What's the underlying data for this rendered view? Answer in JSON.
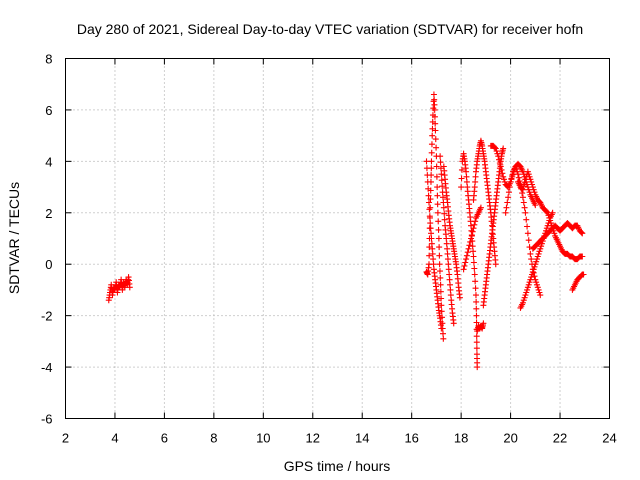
{
  "chart_data": {
    "type": "scatter",
    "title": "Day 280 of 2021, Sidereal Day-to-day VTEC variation (SDTVAR) for receiver hofn",
    "xlabel": "GPS time / hours",
    "ylabel": "SDTVAR / TECUs",
    "xlim": [
      2,
      24
    ],
    "ylim": [
      -6,
      8
    ],
    "xticks": [
      2,
      4,
      6,
      8,
      10,
      12,
      14,
      16,
      18,
      20,
      22,
      24
    ],
    "yticks": [
      -6,
      -4,
      -2,
      0,
      2,
      4,
      6,
      8
    ],
    "grid": true,
    "series": [
      {
        "name": "SDTVAR",
        "color": "#ff0000",
        "marker": "plus",
        "segments": [
          [
            [
              3.75,
              -1.4
            ],
            [
              3.8,
              -1.1
            ],
            [
              3.85,
              -0.8
            ],
            [
              3.9,
              -1.2
            ],
            [
              3.95,
              -0.9
            ],
            [
              4.0,
              -1.0
            ],
            [
              4.05,
              -0.7
            ],
            [
              4.1,
              -1.1
            ],
            [
              4.15,
              -0.8
            ],
            [
              4.2,
              -0.9
            ],
            [
              4.25,
              -0.6
            ],
            [
              4.3,
              -1.0
            ],
            [
              4.35,
              -0.7
            ],
            [
              4.4,
              -0.9
            ],
            [
              4.45,
              -0.6
            ],
            [
              4.5,
              -0.8
            ],
            [
              4.55,
              -0.5
            ],
            [
              4.6,
              -0.9
            ]
          ],
          [
            [
              16.6,
              -0.3
            ],
            [
              16.65,
              -0.4
            ],
            [
              16.7,
              0.0
            ],
            [
              16.72,
              1.0
            ],
            [
              16.75,
              2.2
            ],
            [
              16.78,
              3.2
            ],
            [
              16.8,
              4.0
            ],
            [
              16.83,
              5.0
            ],
            [
              16.86,
              5.8
            ],
            [
              16.9,
              6.6
            ],
            [
              16.93,
              6.0
            ],
            [
              16.96,
              5.2
            ],
            [
              17.0,
              4.2
            ],
            [
              17.03,
              3.0
            ],
            [
              17.06,
              2.0
            ],
            [
              17.1,
              1.0
            ],
            [
              17.13,
              0.0
            ],
            [
              17.17,
              -0.8
            ],
            [
              17.2,
              -1.6
            ],
            [
              17.24,
              -2.3
            ],
            [
              17.28,
              -2.9
            ]
          ],
          [
            [
              16.6,
              4.0
            ],
            [
              16.65,
              3.2
            ],
            [
              16.7,
              2.4
            ],
            [
              16.75,
              1.6
            ],
            [
              16.8,
              1.0
            ],
            [
              16.85,
              0.4
            ],
            [
              16.9,
              -0.2
            ],
            [
              16.95,
              -0.6
            ],
            [
              17.0,
              -1.0
            ],
            [
              17.05,
              -1.4
            ],
            [
              17.1,
              -1.8
            ],
            [
              17.15,
              -2.1
            ],
            [
              17.2,
              -2.5
            ]
          ],
          [
            [
              17.15,
              4.2
            ],
            [
              17.2,
              3.5
            ],
            [
              17.25,
              2.8
            ],
            [
              17.3,
              2.2
            ],
            [
              17.35,
              1.5
            ],
            [
              17.4,
              1.0
            ],
            [
              17.45,
              0.4
            ],
            [
              17.5,
              -0.2
            ],
            [
              17.55,
              -0.8
            ],
            [
              17.6,
              -1.4
            ],
            [
              17.65,
              -1.9
            ],
            [
              17.7,
              -2.3
            ]
          ],
          [
            [
              17.3,
              3.8
            ],
            [
              17.35,
              3.3
            ],
            [
              17.4,
              2.8
            ],
            [
              17.45,
              2.4
            ],
            [
              17.5,
              1.9
            ],
            [
              17.55,
              1.5
            ],
            [
              17.6,
              1.2
            ],
            [
              17.65,
              0.9
            ],
            [
              17.7,
              0.6
            ],
            [
              17.75,
              0.3
            ],
            [
              17.8,
              0.0
            ],
            [
              17.85,
              -0.4
            ],
            [
              17.9,
              -0.9
            ],
            [
              17.95,
              -1.3
            ]
          ],
          [
            [
              18.0,
              3.0
            ],
            [
              18.05,
              4.0
            ],
            [
              18.1,
              4.3
            ],
            [
              18.15,
              4.0
            ],
            [
              18.2,
              3.6
            ],
            [
              18.25,
              3.0
            ],
            [
              18.3,
              2.5
            ],
            [
              18.35,
              2.0
            ],
            [
              18.4,
              1.5
            ],
            [
              18.45,
              0.9
            ],
            [
              18.5,
              0.3
            ],
            [
              18.55,
              -0.4
            ],
            [
              18.6,
              -1.2
            ],
            [
              18.62,
              -2.0
            ],
            [
              18.63,
              -2.8
            ],
            [
              18.64,
              -3.5
            ],
            [
              18.65,
              -4.0
            ]
          ],
          [
            [
              18.65,
              -2.6
            ],
            [
              18.7,
              -2.4
            ],
            [
              18.75,
              -2.5
            ],
            [
              18.8,
              -2.4
            ],
            [
              18.85,
              -2.5
            ],
            [
              18.9,
              -2.3
            ]
          ],
          [
            [
              18.5,
              2.5
            ],
            [
              18.55,
              3.0
            ],
            [
              18.6,
              3.6
            ],
            [
              18.65,
              4.0
            ],
            [
              18.7,
              4.3
            ],
            [
              18.75,
              4.6
            ],
            [
              18.8,
              4.8
            ],
            [
              18.85,
              4.6
            ],
            [
              18.9,
              4.3
            ],
            [
              18.95,
              4.0
            ],
            [
              19.0,
              3.6
            ],
            [
              19.05,
              3.2
            ],
            [
              19.1,
              2.8
            ],
            [
              19.15,
              2.4
            ],
            [
              19.2,
              2.0
            ],
            [
              19.25,
              1.5
            ],
            [
              19.3,
              1.0
            ],
            [
              19.35,
              0.5
            ],
            [
              19.4,
              0.0
            ]
          ],
          [
            [
              18.1,
              -0.2
            ],
            [
              18.2,
              0.2
            ],
            [
              18.3,
              0.6
            ],
            [
              18.4,
              1.0
            ],
            [
              18.5,
              1.4
            ],
            [
              18.6,
              1.8
            ],
            [
              18.7,
              2.0
            ],
            [
              18.8,
              2.2
            ]
          ],
          [
            [
              18.9,
              -1.6
            ],
            [
              18.95,
              -1.2
            ],
            [
              19.0,
              -0.8
            ],
            [
              19.05,
              -0.4
            ],
            [
              19.1,
              0.0
            ],
            [
              19.15,
              0.4
            ],
            [
              19.2,
              0.8
            ],
            [
              19.25,
              1.2
            ],
            [
              19.3,
              1.6
            ],
            [
              19.35,
              2.0
            ],
            [
              19.4,
              2.4
            ],
            [
              19.45,
              2.8
            ],
            [
              19.5,
              3.2
            ],
            [
              19.55,
              3.6
            ],
            [
              19.6,
              4.0
            ],
            [
              19.65,
              4.3
            ],
            [
              19.7,
              4.5
            ]
          ],
          [
            [
              19.2,
              4.6
            ],
            [
              19.3,
              4.6
            ],
            [
              19.4,
              4.5
            ],
            [
              19.5,
              4.2
            ],
            [
              19.6,
              3.8
            ],
            [
              19.7,
              3.4
            ],
            [
              19.8,
              3.1
            ],
            [
              19.9,
              3.0
            ],
            [
              20.0,
              3.2
            ],
            [
              20.1,
              3.5
            ],
            [
              20.2,
              3.8
            ],
            [
              20.3,
              3.9
            ],
            [
              20.4,
              3.8
            ],
            [
              20.5,
              3.6
            ],
            [
              20.6,
              3.3
            ],
            [
              20.7,
              3.0
            ],
            [
              20.8,
              2.7
            ],
            [
              20.9,
              2.5
            ],
            [
              21.0,
              2.3
            ]
          ],
          [
            [
              19.8,
              2.0
            ],
            [
              19.9,
              2.6
            ],
            [
              20.0,
              3.2
            ],
            [
              20.1,
              3.6
            ],
            [
              20.2,
              3.8
            ],
            [
              20.3,
              3.5
            ],
            [
              20.4,
              3.1
            ],
            [
              20.5,
              2.6
            ],
            [
              20.6,
              2.0
            ],
            [
              20.7,
              1.2
            ],
            [
              20.8,
              0.4
            ],
            [
              20.9,
              -0.2
            ],
            [
              21.0,
              -0.6
            ],
            [
              21.1,
              -0.9
            ],
            [
              21.2,
              -1.2
            ]
          ],
          [
            [
              20.4,
              -1.7
            ],
            [
              20.5,
              -1.5
            ],
            [
              20.6,
              -1.2
            ],
            [
              20.7,
              -0.9
            ],
            [
              20.8,
              -0.6
            ],
            [
              20.9,
              -0.3
            ],
            [
              21.0,
              0.0
            ],
            [
              21.1,
              0.3
            ],
            [
              21.2,
              0.6
            ],
            [
              21.3,
              0.9
            ],
            [
              21.4,
              1.2
            ],
            [
              21.5,
              1.5
            ],
            [
              21.6,
              1.8
            ],
            [
              21.7,
              2.0
            ]
          ],
          [
            [
              20.3,
              3.2
            ],
            [
              20.4,
              3.0
            ],
            [
              20.5,
              2.9
            ],
            [
              20.6,
              3.3
            ],
            [
              20.7,
              3.6
            ],
            [
              20.8,
              3.3
            ],
            [
              20.9,
              3.0
            ],
            [
              21.0,
              2.7
            ],
            [
              21.1,
              2.5
            ],
            [
              21.2,
              2.4
            ],
            [
              21.3,
              2.2
            ],
            [
              21.4,
              2.1
            ],
            [
              21.5,
              2.0
            ],
            [
              21.6,
              1.7
            ],
            [
              21.7,
              1.4
            ],
            [
              21.8,
              1.1
            ],
            [
              21.9,
              0.9
            ],
            [
              22.0,
              0.7
            ],
            [
              22.1,
              0.5
            ],
            [
              22.2,
              0.4
            ],
            [
              22.3,
              0.4
            ],
            [
              22.4,
              0.3
            ],
            [
              22.5,
              0.3
            ],
            [
              22.6,
              0.2
            ],
            [
              22.7,
              0.2
            ],
            [
              22.8,
              0.3
            ],
            [
              22.9,
              0.3
            ]
          ],
          [
            [
              20.9,
              0.6
            ],
            [
              21.0,
              0.7
            ],
            [
              21.1,
              0.8
            ],
            [
              21.2,
              0.9
            ],
            [
              21.3,
              1.0
            ],
            [
              21.4,
              1.1
            ],
            [
              21.5,
              1.2
            ],
            [
              21.6,
              1.3
            ],
            [
              21.7,
              1.4
            ],
            [
              21.8,
              1.5
            ],
            [
              21.9,
              1.4
            ],
            [
              22.0,
              1.3
            ],
            [
              22.1,
              1.4
            ],
            [
              22.2,
              1.5
            ],
            [
              22.3,
              1.6
            ],
            [
              22.4,
              1.5
            ],
            [
              22.5,
              1.4
            ],
            [
              22.6,
              1.5
            ],
            [
              22.7,
              1.5
            ],
            [
              22.8,
              1.3
            ],
            [
              22.9,
              1.2
            ]
          ],
          [
            [
              22.5,
              -1.0
            ],
            [
              22.6,
              -0.8
            ],
            [
              22.7,
              -0.6
            ],
            [
              22.8,
              -0.5
            ],
            [
              22.9,
              -0.4
            ],
            [
              22.95,
              -0.4
            ]
          ]
        ]
      }
    ]
  }
}
